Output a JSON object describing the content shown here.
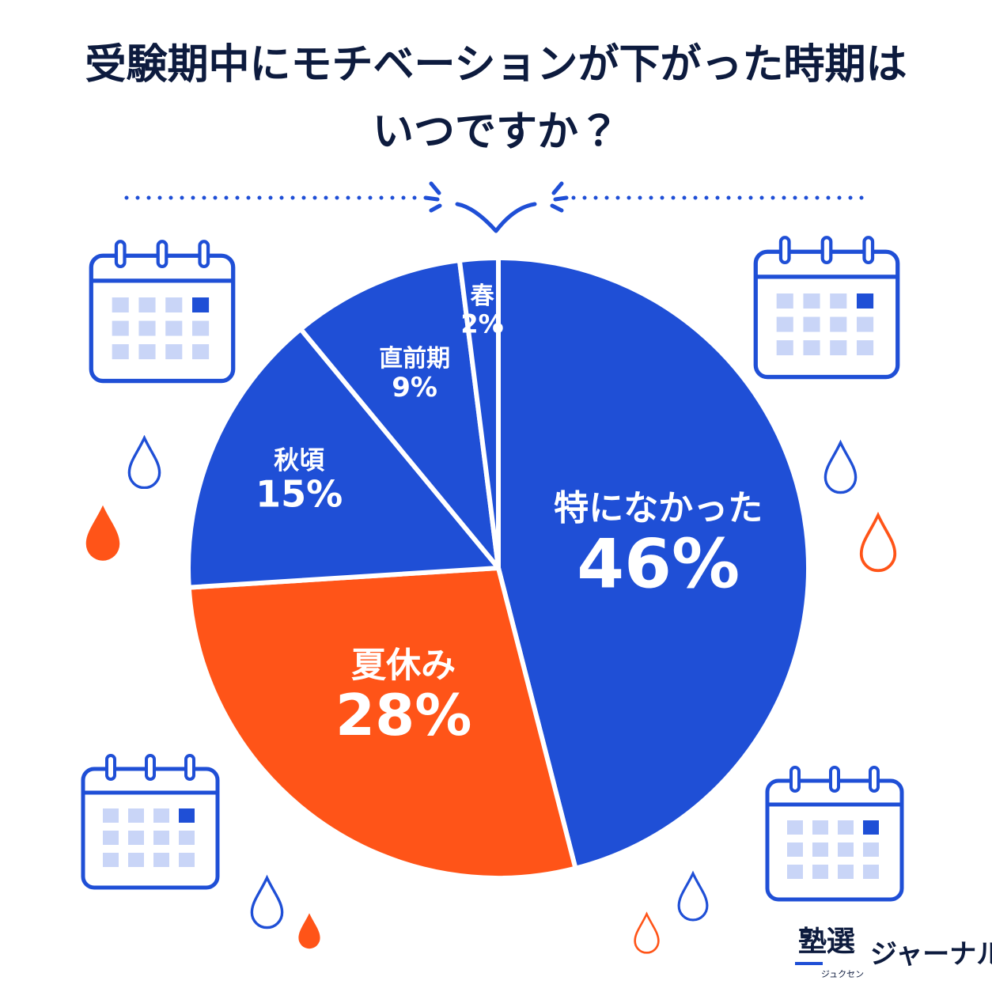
{
  "chart_data": {
    "type": "pie",
    "title": [
      "受験期中にモチベーションが下がった時期は",
      "いつですか？"
    ],
    "categories": [
      "特になかった",
      "夏休み",
      "秋頃",
      "直前期",
      "春"
    ],
    "values": [
      46,
      28,
      15,
      9,
      2
    ],
    "value_labels": [
      "46%",
      "28%",
      "15%",
      "9%",
      "2%"
    ],
    "colors": [
      "#1f4fd6",
      "#ff5418",
      "#1f4fd6",
      "#1f4fd6",
      "#1f4fd6"
    ],
    "start": "top",
    "direction": "clockwise"
  },
  "brand": {
    "name": "塾選",
    "reading": "ジュクセン",
    "suffix": "ジャーナル"
  }
}
